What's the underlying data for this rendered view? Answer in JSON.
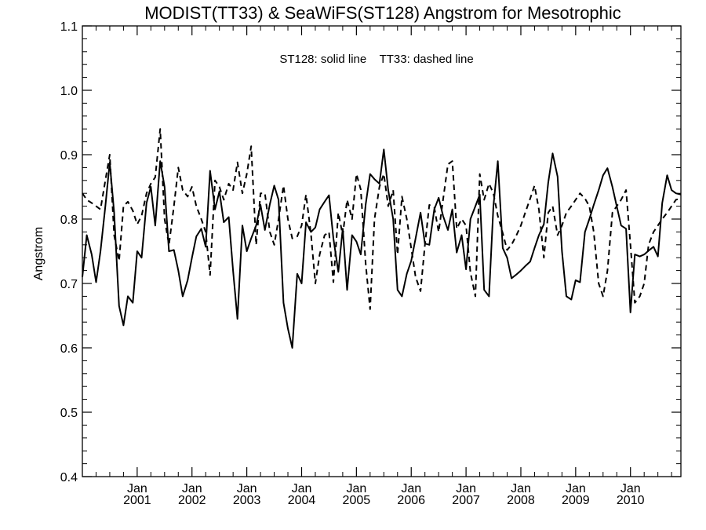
{
  "chart_data": {
    "type": "line",
    "title": "MODIST(TT33) & SeaWiFS(ST128)  Angstrom for Mesotrophic",
    "annotation": "ST128: solid line    TT33: dashed line",
    "xlabel": "",
    "ylabel": "Angstrom",
    "xlim": [
      2000.0,
      2010.92
    ],
    "ylim": [
      0.4,
      1.1
    ],
    "y_ticks": [
      "0.4",
      "0.5",
      "0.6",
      "0.7",
      "0.8",
      "0.9",
      "1.0",
      "1.1"
    ],
    "x_ticks": [
      {
        "month": "Jan",
        "year": "2001",
        "x": 2001.0
      },
      {
        "month": "Jan",
        "year": "2002",
        "x": 2002.0
      },
      {
        "month": "Jan",
        "year": "2003",
        "x": 2003.0
      },
      {
        "month": "Jan",
        "year": "2004",
        "x": 2004.0
      },
      {
        "month": "Jan",
        "year": "2005",
        "x": 2005.0
      },
      {
        "month": "Jan",
        "year": "2006",
        "x": 2006.0
      },
      {
        "month": "Jan",
        "year": "2007",
        "x": 2007.0
      },
      {
        "month": "Jan",
        "year": "2008",
        "x": 2008.0
      },
      {
        "month": "Jan",
        "year": "2009",
        "x": 2009.0
      },
      {
        "month": "Jan",
        "year": "2010",
        "x": 2010.0
      }
    ],
    "grid": false,
    "series": [
      {
        "name": "ST128",
        "style": "solid",
        "color": "#000000",
        "x": [
          2000.0,
          2000.08,
          2000.17,
          2000.25,
          2000.33,
          2000.42,
          2000.5,
          2000.58,
          2000.67,
          2000.75,
          2000.83,
          2000.92,
          2001.0,
          2001.08,
          2001.17,
          2001.25,
          2001.33,
          2001.42,
          2001.5,
          2001.58,
          2001.67,
          2001.75,
          2001.83,
          2001.92,
          2002.0,
          2002.08,
          2002.17,
          2002.25,
          2002.33,
          2002.42,
          2002.5,
          2002.58,
          2002.67,
          2002.75,
          2002.83,
          2002.92,
          2003.0,
          2003.08,
          2003.17,
          2003.25,
          2003.33,
          2003.42,
          2003.5,
          2003.58,
          2003.67,
          2003.75,
          2003.83,
          2003.92,
          2004.0,
          2004.08,
          2004.17,
          2004.25,
          2004.33,
          2004.42,
          2004.5,
          2004.58,
          2004.67,
          2004.75,
          2004.83,
          2004.92,
          2005.0,
          2005.08,
          2005.17,
          2005.25,
          2005.33,
          2005.42,
          2005.5,
          2005.58,
          2005.67,
          2005.75,
          2005.83,
          2005.92,
          2006.0,
          2006.08,
          2006.17,
          2006.25,
          2006.33,
          2006.42,
          2006.5,
          2006.58,
          2006.67,
          2006.75,
          2006.83,
          2006.92,
          2007.0,
          2007.08,
          2007.17,
          2007.25,
          2007.33,
          2007.42,
          2007.5,
          2007.58,
          2007.67,
          2007.75,
          2007.83,
          2007.92,
          2008.0,
          2008.08,
          2008.17,
          2008.25,
          2008.33,
          2008.42,
          2008.5,
          2008.58,
          2008.67,
          2008.75,
          2008.83,
          2008.92,
          2009.0,
          2009.08,
          2009.17,
          2009.25,
          2009.33,
          2009.42,
          2009.5,
          2009.58,
          2009.67,
          2009.75,
          2009.83,
          2009.92,
          2010.0,
          2010.08,
          2010.17,
          2010.25,
          2010.33,
          2010.42,
          2010.5,
          2010.58,
          2010.67,
          2010.75,
          2010.83,
          2010.92
        ],
        "values": [
          0.71,
          0.775,
          0.745,
          0.702,
          0.75,
          0.82,
          0.888,
          0.81,
          0.665,
          0.635,
          0.68,
          0.67,
          0.75,
          0.74,
          0.825,
          0.85,
          0.79,
          0.89,
          0.85,
          0.75,
          0.752,
          0.72,
          0.68,
          0.705,
          0.74,
          0.773,
          0.785,
          0.757,
          0.875,
          0.815,
          0.843,
          0.795,
          0.803,
          0.72,
          0.645,
          0.79,
          0.75,
          0.77,
          0.79,
          0.822,
          0.783,
          0.823,
          0.852,
          0.83,
          0.67,
          0.63,
          0.6,
          0.715,
          0.7,
          0.795,
          0.78,
          0.787,
          0.815,
          0.827,
          0.837,
          0.77,
          0.718,
          0.785,
          0.69,
          0.775,
          0.765,
          0.745,
          0.823,
          0.87,
          0.862,
          0.855,
          0.908,
          0.845,
          0.8,
          0.69,
          0.68,
          0.715,
          0.735,
          0.77,
          0.81,
          0.762,
          0.76,
          0.815,
          0.833,
          0.805,
          0.783,
          0.815,
          0.748,
          0.775,
          0.722,
          0.8,
          0.82,
          0.838,
          0.69,
          0.68,
          0.82,
          0.89,
          0.755,
          0.74,
          0.708,
          0.714,
          0.72,
          0.727,
          0.734,
          0.755,
          0.775,
          0.792,
          0.857,
          0.902,
          0.866,
          0.75,
          0.68,
          0.675,
          0.705,
          0.702,
          0.78,
          0.8,
          0.822,
          0.845,
          0.868,
          0.879,
          0.85,
          0.82,
          0.79,
          0.785,
          0.655,
          0.745,
          0.742,
          0.745,
          0.751,
          0.757,
          0.742,
          0.825,
          0.868,
          0.845,
          0.84,
          0.838
        ]
      },
      {
        "name": "TT33",
        "style": "dashed",
        "color": "#000000",
        "x": [
          2000.0,
          2000.08,
          2000.17,
          2000.25,
          2000.33,
          2000.42,
          2000.5,
          2000.58,
          2000.67,
          2000.75,
          2000.83,
          2000.92,
          2001.0,
          2001.08,
          2001.17,
          2001.25,
          2001.33,
          2001.42,
          2001.5,
          2001.58,
          2001.67,
          2001.75,
          2001.83,
          2001.92,
          2002.0,
          2002.08,
          2002.17,
          2002.25,
          2002.33,
          2002.42,
          2002.5,
          2002.58,
          2002.67,
          2002.75,
          2002.83,
          2002.92,
          2003.0,
          2003.08,
          2003.17,
          2003.25,
          2003.33,
          2003.42,
          2003.5,
          2003.58,
          2003.67,
          2003.75,
          2003.83,
          2003.92,
          2004.0,
          2004.08,
          2004.17,
          2004.25,
          2004.33,
          2004.42,
          2004.5,
          2004.58,
          2004.67,
          2004.75,
          2004.83,
          2004.92,
          2005.0,
          2005.08,
          2005.17,
          2005.25,
          2005.33,
          2005.42,
          2005.5,
          2005.58,
          2005.67,
          2005.75,
          2005.83,
          2005.92,
          2006.0,
          2006.08,
          2006.17,
          2006.25,
          2006.33,
          2006.42,
          2006.5,
          2006.58,
          2006.67,
          2006.75,
          2006.83,
          2006.92,
          2007.0,
          2007.08,
          2007.17,
          2007.25,
          2007.33,
          2007.42,
          2007.5,
          2007.58,
          2007.67,
          2007.75,
          2007.83,
          2007.92,
          2008.0,
          2008.08,
          2008.17,
          2008.25,
          2008.33,
          2008.42,
          2008.5,
          2008.58,
          2008.67,
          2008.75,
          2008.83,
          2008.92,
          2009.0,
          2009.08,
          2009.17,
          2009.25,
          2009.33,
          2009.42,
          2009.5,
          2009.58,
          2009.67,
          2009.75,
          2009.83,
          2009.92,
          2010.0,
          2010.08,
          2010.17,
          2010.25,
          2010.33,
          2010.42,
          2010.5,
          2010.58,
          2010.67,
          2010.75,
          2010.83,
          2010.92
        ],
        "values": [
          0.84,
          0.83,
          0.825,
          0.82,
          0.815,
          0.86,
          0.9,
          0.775,
          0.735,
          0.82,
          0.827,
          0.813,
          0.792,
          0.805,
          0.84,
          0.855,
          0.865,
          0.94,
          0.8,
          0.76,
          0.82,
          0.88,
          0.845,
          0.835,
          0.85,
          0.82,
          0.8,
          0.78,
          0.713,
          0.86,
          0.85,
          0.83,
          0.855,
          0.845,
          0.888,
          0.84,
          0.87,
          0.913,
          0.76,
          0.84,
          0.84,
          0.78,
          0.76,
          0.8,
          0.852,
          0.8,
          0.77,
          0.773,
          0.79,
          0.838,
          0.777,
          0.7,
          0.745,
          0.775,
          0.78,
          0.702,
          0.81,
          0.775,
          0.83,
          0.8,
          0.87,
          0.846,
          0.73,
          0.66,
          0.8,
          0.85,
          0.87,
          0.82,
          0.845,
          0.745,
          0.835,
          0.8,
          0.755,
          0.71,
          0.688,
          0.76,
          0.822,
          0.818,
          0.78,
          0.83,
          0.885,
          0.89,
          0.785,
          0.8,
          0.79,
          0.717,
          0.68,
          0.87,
          0.83,
          0.855,
          0.84,
          0.805,
          0.778,
          0.752,
          0.76,
          0.775,
          0.79,
          0.81,
          0.832,
          0.852,
          0.815,
          0.74,
          0.81,
          0.82,
          0.775,
          0.79,
          0.81,
          0.82,
          0.83,
          0.84,
          0.832,
          0.82,
          0.78,
          0.7,
          0.68,
          0.72,
          0.81,
          0.82,
          0.83,
          0.845,
          0.76,
          0.67,
          0.68,
          0.7,
          0.76,
          0.78,
          0.79,
          0.8,
          0.81,
          0.82,
          0.83,
          0.832
        ]
      }
    ]
  }
}
